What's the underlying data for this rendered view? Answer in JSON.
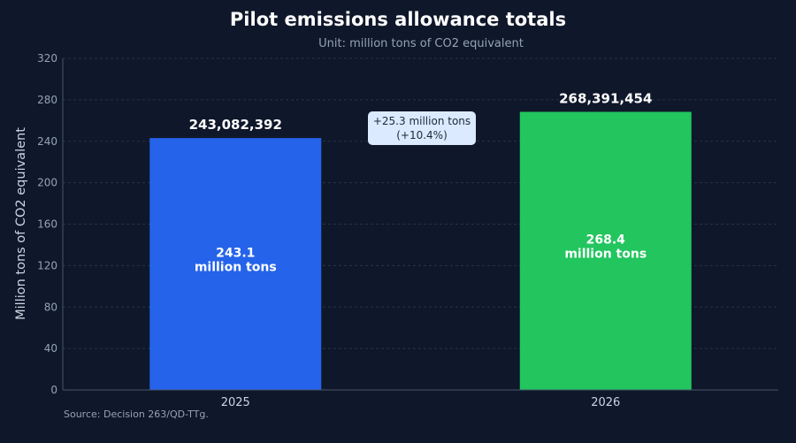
{
  "chart_data": {
    "type": "bar",
    "title": "Pilot emissions allowance totals",
    "subtitle": "Unit: million tons of CO2 equivalent",
    "ylabel": "Million tons of CO2 equivalent",
    "xlabel": "",
    "categories": [
      "2025",
      "2026"
    ],
    "values": [
      243.08,
      268.39
    ],
    "value_labels": [
      "243,082,392",
      "268,391,454"
    ],
    "inner_labels": [
      [
        "243.1",
        "million tons"
      ],
      [
        "268.4",
        "million tons"
      ]
    ],
    "bar_colors": [
      "#2563eb",
      "#22c55e"
    ],
    "ylim": [
      0,
      320
    ],
    "yticks": [
      0,
      40,
      80,
      120,
      160,
      200,
      240,
      280,
      320
    ],
    "grid": true,
    "annotation": {
      "line1": "+25.3 million tons",
      "line2": "(+10.4%)"
    },
    "source": "Source: Decision 263/QD-TTg."
  },
  "colors": {
    "background": "#0f172a",
    "grid": "#263449",
    "axis": "#475569",
    "tick_text": "#94a3b8",
    "value_label": "#ffffff",
    "annotation_bg": "#dbeafe"
  }
}
